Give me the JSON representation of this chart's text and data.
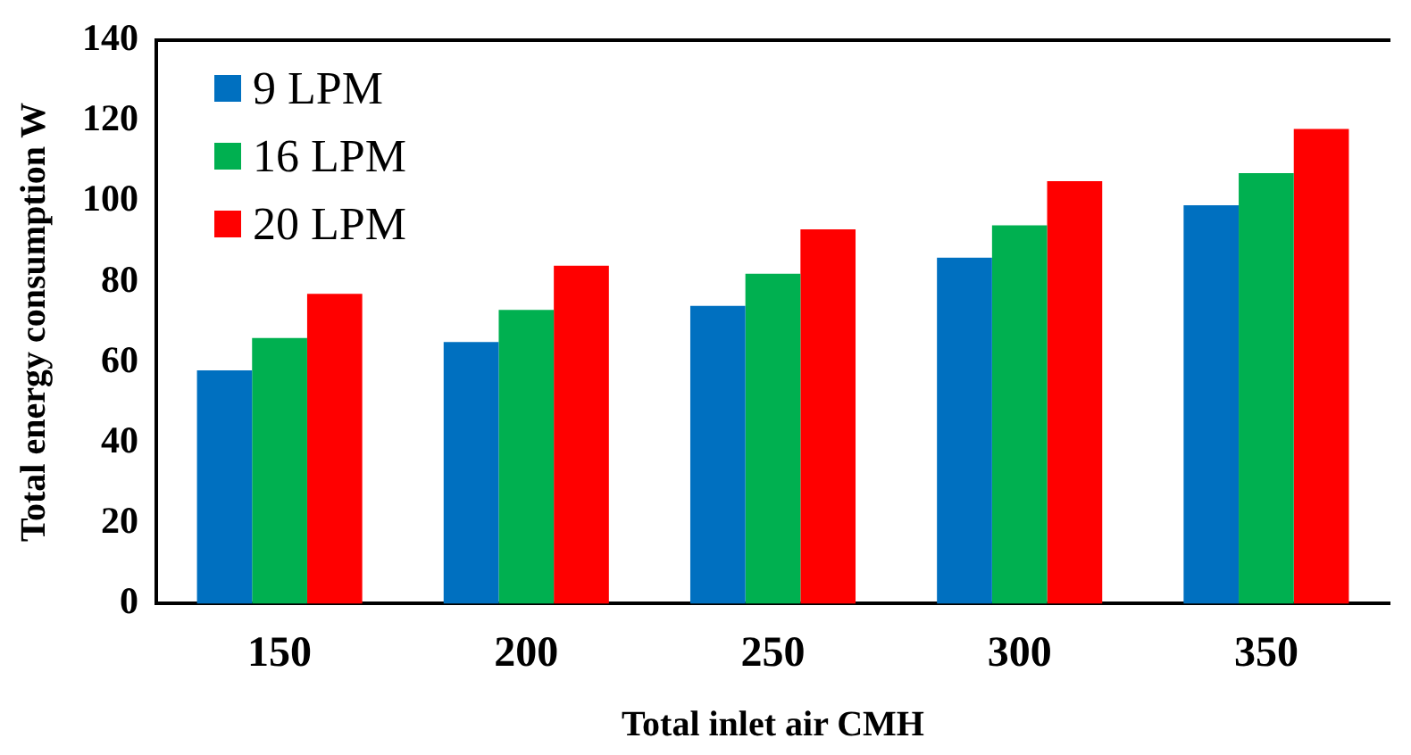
{
  "chart_data": {
    "type": "bar",
    "xlabel": "Total inlet air CMH",
    "ylabel": "Total energy consumption W",
    "categories": [
      "150",
      "200",
      "250",
      "300",
      "350"
    ],
    "series": [
      {
        "name": "9 LPM",
        "color": "#0070c0",
        "values": [
          58,
          65,
          74,
          86,
          99
        ]
      },
      {
        "name": "16 LPM",
        "color": "#00b050",
        "values": [
          66,
          73,
          82,
          94,
          107
        ]
      },
      {
        "name": "20 LPM",
        "color": "#ff0000",
        "values": [
          77,
          84,
          93,
          105,
          118
        ]
      }
    ],
    "ylim": [
      0,
      140
    ],
    "yticks": [
      0,
      20,
      40,
      60,
      80,
      100,
      120,
      140
    ],
    "grid": false,
    "legend": "top left"
  }
}
